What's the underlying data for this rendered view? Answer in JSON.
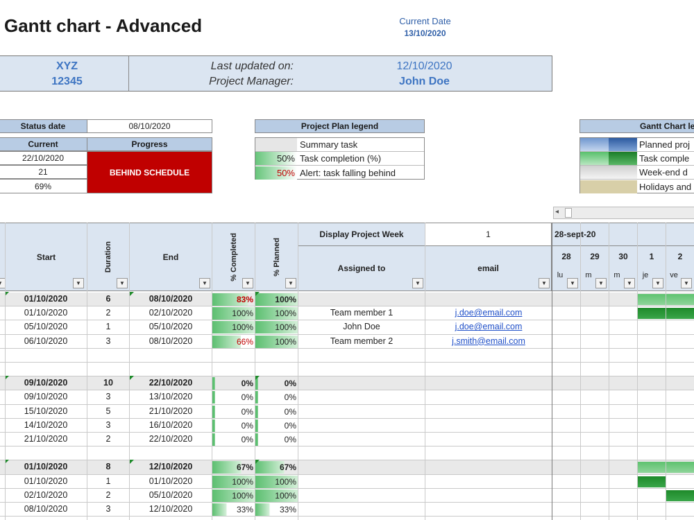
{
  "title": "Gantt chart - Advanced",
  "current_date_label": "Current Date",
  "current_date": "13/10/2020",
  "banner": {
    "project": "XYZ",
    "code": "12345",
    "last_updated_label": "Last updated on:",
    "last_updated": "12/10/2020",
    "pm_label": "Project Manager:",
    "pm": "John Doe"
  },
  "status": {
    "status_date_label": "Status date",
    "status_date": "08/10/2020",
    "current_label": "Current",
    "progress_label": "Progress",
    "values": [
      "22/10/2020",
      "21",
      "69%"
    ],
    "progress_text": "BEHIND SCHEDULE"
  },
  "plan_legend": {
    "title": "Project Plan legend",
    "items": [
      {
        "pct": "",
        "label": "Summary task"
      },
      {
        "pct": "50%",
        "label": "Task completion (%)"
      },
      {
        "pct": "50%",
        "label": "Alert: task falling behind"
      }
    ]
  },
  "gantt_legend": {
    "title": "Gantt Chart le",
    "items": [
      "Planned proj",
      "Task comple",
      "Week-end d",
      "Holidays and"
    ]
  },
  "columns": {
    "start": "Start",
    "duration": "Duration",
    "end": "End",
    "completed": "% Completed",
    "planned": "% Planned",
    "display_week_label": "Display Project Week",
    "display_week_value": "1",
    "assigned": "Assigned to",
    "email": "email"
  },
  "timeline": {
    "week_label": "28-sept-20",
    "days": [
      "28",
      "29",
      "30",
      "1",
      "2"
    ],
    "weekdays": [
      "lu",
      "m",
      "m",
      "je",
      "ve"
    ]
  },
  "colors": {
    "header_blue": "#b8cce4",
    "alert_red": "#c00000",
    "bar_green": "#1e8a2a",
    "bar_light_green": "#8fd49a"
  },
  "rows": [
    {
      "type": "summary",
      "start": "01/10/2020",
      "dur": "6",
      "end": "08/10/2020",
      "comp": "83%",
      "comp_v": 0.83,
      "alert": true,
      "plan": "100%",
      "plan_v": 1.0,
      "assigned": "",
      "email": ""
    },
    {
      "type": "task",
      "start": "01/10/2020",
      "dur": "2",
      "end": "02/10/2020",
      "comp": "100%",
      "comp_v": 1.0,
      "alert": false,
      "plan": "100%",
      "plan_v": 1.0,
      "assigned": "Team member 1",
      "email": "j.doe@email.com"
    },
    {
      "type": "task",
      "start": "05/10/2020",
      "dur": "1",
      "end": "05/10/2020",
      "comp": "100%",
      "comp_v": 1.0,
      "alert": false,
      "plan": "100%",
      "plan_v": 1.0,
      "assigned": "John Doe",
      "email": "j.doe@email.com"
    },
    {
      "type": "task",
      "start": "06/10/2020",
      "dur": "3",
      "end": "08/10/2020",
      "comp": "66%",
      "comp_v": 0.66,
      "alert": true,
      "plan": "100%",
      "plan_v": 1.0,
      "assigned": "Team member 2",
      "email": "j.smith@email.com"
    },
    {
      "type": "blank"
    },
    {
      "type": "blank"
    },
    {
      "type": "summary",
      "start": "09/10/2020",
      "dur": "10",
      "end": "22/10/2020",
      "comp": "0%",
      "comp_v": 0,
      "alert": false,
      "plan": "0%",
      "plan_v": 0,
      "assigned": "",
      "email": ""
    },
    {
      "type": "task",
      "start": "09/10/2020",
      "dur": "3",
      "end": "13/10/2020",
      "comp": "0%",
      "comp_v": 0,
      "alert": false,
      "plan": "0%",
      "plan_v": 0,
      "assigned": "",
      "email": ""
    },
    {
      "type": "task",
      "start": "15/10/2020",
      "dur": "5",
      "end": "21/10/2020",
      "comp": "0%",
      "comp_v": 0,
      "alert": false,
      "plan": "0%",
      "plan_v": 0,
      "assigned": "",
      "email": ""
    },
    {
      "type": "task",
      "start": "14/10/2020",
      "dur": "3",
      "end": "16/10/2020",
      "comp": "0%",
      "comp_v": 0,
      "alert": false,
      "plan": "0%",
      "plan_v": 0,
      "assigned": "",
      "email": ""
    },
    {
      "type": "task",
      "start": "21/10/2020",
      "dur": "2",
      "end": "22/10/2020",
      "comp": "0%",
      "comp_v": 0,
      "alert": false,
      "plan": "0%",
      "plan_v": 0,
      "assigned": "",
      "email": ""
    },
    {
      "type": "blank"
    },
    {
      "type": "summary",
      "start": "01/10/2020",
      "dur": "8",
      "end": "12/10/2020",
      "comp": "67%",
      "comp_v": 0.67,
      "alert": false,
      "plan": "67%",
      "plan_v": 0.67,
      "assigned": "",
      "email": ""
    },
    {
      "type": "task",
      "start": "01/10/2020",
      "dur": "1",
      "end": "01/10/2020",
      "comp": "100%",
      "comp_v": 1.0,
      "alert": false,
      "plan": "100%",
      "plan_v": 1.0,
      "assigned": "",
      "email": ""
    },
    {
      "type": "task",
      "start": "02/10/2020",
      "dur": "2",
      "end": "05/10/2020",
      "comp": "100%",
      "comp_v": 1.0,
      "alert": false,
      "plan": "100%",
      "plan_v": 1.0,
      "assigned": "",
      "email": ""
    },
    {
      "type": "task",
      "start": "08/10/2020",
      "dur": "3",
      "end": "12/10/2020",
      "comp": "33%",
      "comp_v": 0.33,
      "alert": false,
      "plan": "33%",
      "plan_v": 0.33,
      "assigned": "",
      "email": ""
    }
  ]
}
